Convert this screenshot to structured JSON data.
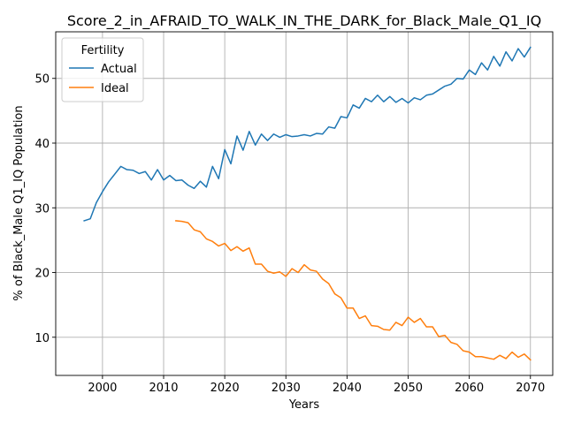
{
  "chart_data": {
    "type": "line",
    "title": "Score_2_in_AFRAID_TO_WALK_IN_THE_DARK_for_Black_Male_Q1_IQ",
    "xlabel": "Years",
    "ylabel": "% of Black_Male Q1_IQ Population",
    "xlim": [
      1992.35,
      2073.65
    ],
    "ylim": [
      4.1,
      57.2
    ],
    "xticks": [
      2000,
      2010,
      2020,
      2030,
      2040,
      2050,
      2060,
      2070
    ],
    "yticks": [
      10,
      20,
      30,
      40,
      50
    ],
    "grid": true,
    "legend": {
      "title": "Fertility",
      "position": "top-left"
    },
    "series": [
      {
        "name": "Actual",
        "color": "#1f77b4",
        "x": [
          1997,
          1998,
          1999,
          2000,
          2001,
          2002,
          2003,
          2004,
          2005,
          2006,
          2007,
          2008,
          2009,
          2010,
          2011,
          2012,
          2013,
          2014,
          2015,
          2016,
          2017,
          2018,
          2019,
          2020,
          2021,
          2022,
          2023,
          2024,
          2025,
          2026,
          2027,
          2028,
          2029,
          2030,
          2031,
          2032,
          2033,
          2034,
          2035,
          2036,
          2037,
          2038,
          2039,
          2040,
          2041,
          2042,
          2043,
          2044,
          2045,
          2046,
          2047,
          2048,
          2049,
          2050,
          2051,
          2052,
          2053,
          2054,
          2055,
          2056,
          2057,
          2058,
          2059,
          2060,
          2061,
          2062,
          2063,
          2064,
          2065,
          2066,
          2067,
          2068,
          2069,
          2070
        ],
        "y": [
          28.0,
          28.3,
          30.8,
          32.5,
          34.0,
          35.2,
          36.4,
          35.9,
          35.8,
          35.3,
          35.6,
          34.3,
          35.9,
          34.3,
          35.0,
          34.2,
          34.3,
          33.5,
          33.0,
          34.1,
          33.2,
          36.4,
          34.5,
          39.0,
          36.8,
          41.1,
          38.9,
          41.8,
          39.7,
          41.4,
          40.4,
          41.4,
          40.9,
          41.3,
          41.0,
          41.1,
          41.3,
          41.1,
          41.5,
          41.4,
          42.5,
          42.3,
          44.1,
          43.9,
          45.9,
          45.4,
          46.9,
          46.4,
          47.4,
          46.4,
          47.2,
          46.3,
          46.9,
          46.2,
          47.0,
          46.7,
          47.4,
          47.6,
          48.2,
          48.8,
          49.1,
          50.0,
          49.9,
          51.3,
          50.6,
          52.4,
          51.3,
          53.4,
          51.9,
          54.1,
          52.7,
          54.6,
          53.3,
          54.8
        ]
      },
      {
        "name": "Ideal",
        "color": "#ff7f0e",
        "x": [
          2012,
          2013,
          2014,
          2015,
          2016,
          2017,
          2018,
          2019,
          2020,
          2021,
          2022,
          2023,
          2024,
          2025,
          2026,
          2027,
          2028,
          2029,
          2030,
          2031,
          2032,
          2033,
          2034,
          2035,
          2036,
          2037,
          2038,
          2039,
          2040,
          2041,
          2042,
          2043,
          2044,
          2045,
          2046,
          2047,
          2048,
          2049,
          2050,
          2051,
          2052,
          2053,
          2054,
          2055,
          2056,
          2057,
          2058,
          2059,
          2060,
          2061,
          2062,
          2063,
          2064,
          2065,
          2066,
          2067,
          2068,
          2069,
          2070
        ],
        "y": [
          28.0,
          27.9,
          27.7,
          26.6,
          26.3,
          25.2,
          24.8,
          24.1,
          24.5,
          23.4,
          24.0,
          23.3,
          23.8,
          21.3,
          21.3,
          20.2,
          19.9,
          20.1,
          19.4,
          20.6,
          20.0,
          21.2,
          20.4,
          20.2,
          19.0,
          18.3,
          16.7,
          16.1,
          14.5,
          14.5,
          12.9,
          13.3,
          11.8,
          11.7,
          11.2,
          11.1,
          12.3,
          11.8,
          13.1,
          12.3,
          12.9,
          11.6,
          11.6,
          10.1,
          10.3,
          9.2,
          8.9,
          7.9,
          7.7,
          7.0,
          7.0,
          6.8,
          6.6,
          7.2,
          6.7,
          7.7,
          6.9,
          7.4,
          6.5
        ]
      }
    ]
  }
}
